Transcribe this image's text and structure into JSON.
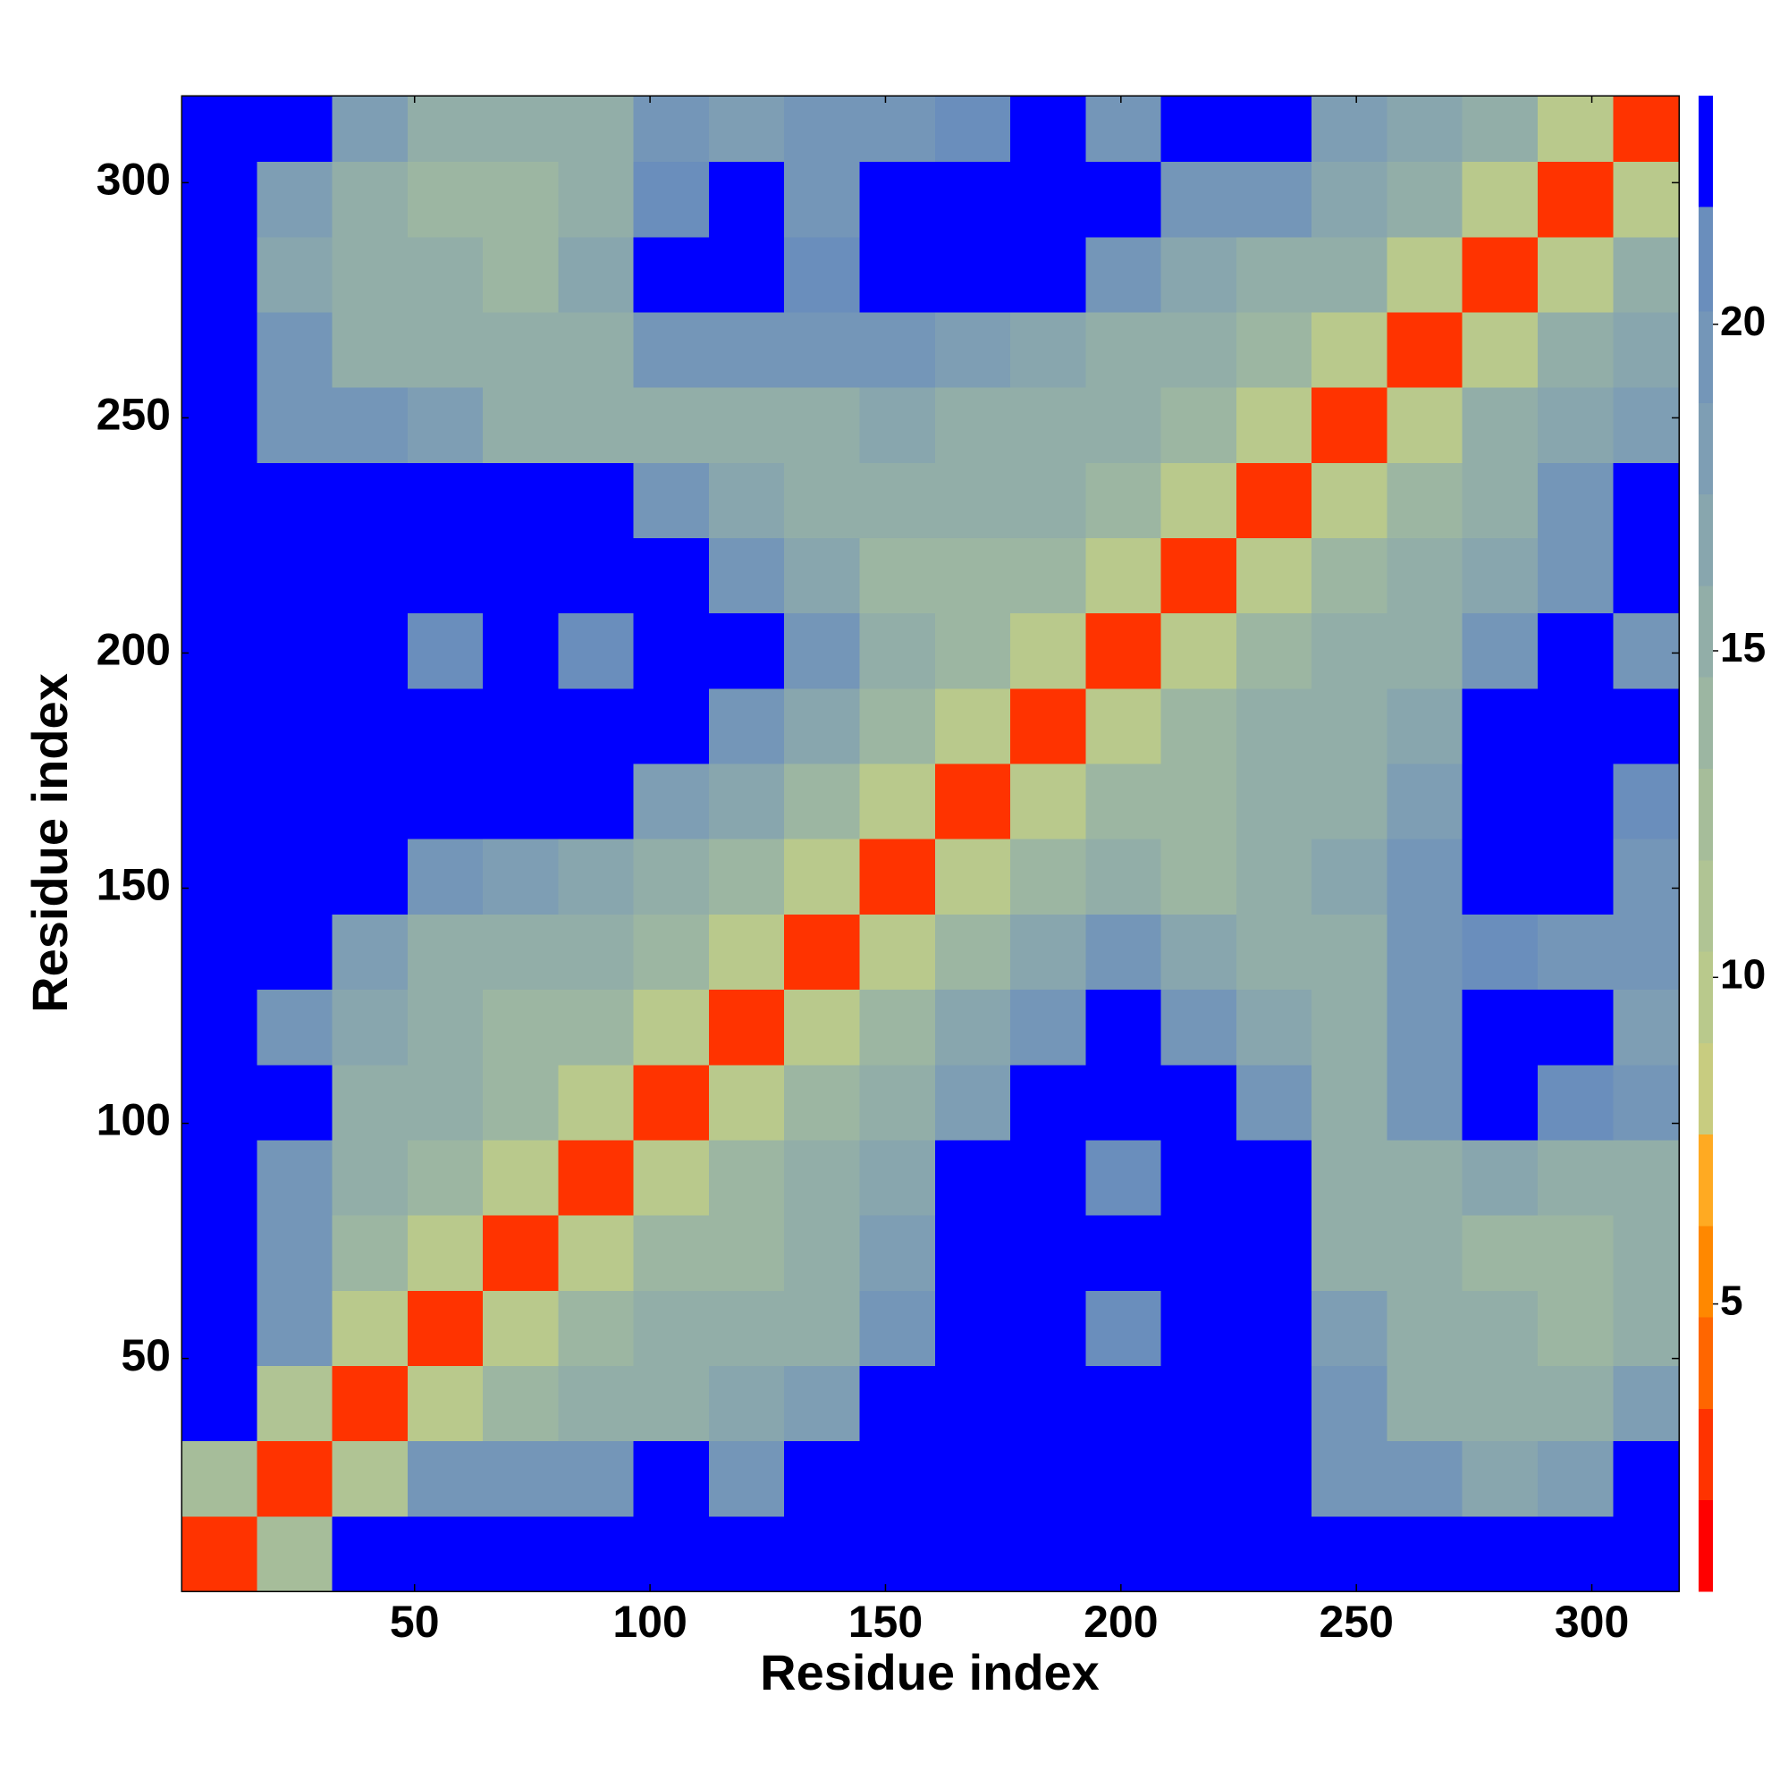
{
  "chart_data": {
    "type": "heatmap",
    "x_label": "Residue index",
    "y_label": "Residue index",
    "xlim": [
      0.5,
      318.5
    ],
    "ylim": [
      0.5,
      318.5
    ],
    "xticks": [
      50,
      100,
      150,
      200,
      250,
      300
    ],
    "yticks": [
      50,
      100,
      150,
      200,
      250,
      300
    ],
    "x_bins": [
      0.5,
      16.5,
      32.5,
      48.5,
      64.5,
      80.5,
      96.5,
      112.5,
      128.5,
      144.5,
      160.5,
      176.5,
      192.5,
      208.5,
      224.5,
      240.5,
      256.5,
      272.5,
      288.5,
      304.5,
      318.5
    ],
    "y_bins": [
      0.5,
      16.5,
      32.5,
      48.5,
      64.5,
      80.5,
      96.5,
      112.5,
      128.5,
      144.5,
      160.5,
      176.5,
      192.5,
      208.5,
      224.5,
      240.5,
      256.5,
      272.5,
      288.5,
      304.5,
      318.5
    ],
    "z": [
      [
        3,
        12,
        23,
        23,
        23,
        23,
        23,
        23,
        23,
        23,
        23,
        23,
        23,
        23,
        23,
        23,
        23,
        23,
        23,
        23
      ],
      [
        12,
        3,
        11,
        19,
        20,
        19,
        23,
        20,
        23,
        23,
        23,
        23,
        23,
        23,
        23,
        19,
        20,
        17,
        18,
        23
      ],
      [
        23,
        11,
        3,
        10,
        14,
        15,
        16,
        17,
        18,
        23,
        23,
        23,
        23,
        23,
        23,
        20,
        16,
        15,
        16,
        18
      ],
      [
        23,
        19,
        10,
        3,
        10,
        14,
        15,
        15,
        16,
        20,
        23,
        23,
        21,
        23,
        23,
        18,
        15,
        15,
        14,
        15
      ],
      [
        23,
        20,
        14,
        10,
        3,
        10,
        14,
        14,
        15,
        18,
        23,
        23,
        23,
        23,
        23,
        16,
        15,
        14,
        14,
        16
      ],
      [
        23,
        19,
        15,
        14,
        10,
        3,
        10,
        14,
        15,
        17,
        23,
        23,
        21,
        23,
        23,
        15,
        16,
        17,
        15,
        16
      ],
      [
        23,
        23,
        16,
        15,
        14,
        10,
        3,
        10,
        14,
        15,
        18,
        23,
        23,
        23,
        20,
        16,
        20,
        23,
        21,
        20
      ],
      [
        23,
        20,
        17,
        15,
        14,
        14,
        10,
        3,
        10,
        14,
        17,
        20,
        23,
        20,
        17,
        16,
        20,
        23,
        22,
        18
      ],
      [
        23,
        23,
        18,
        16,
        15,
        15,
        14,
        10,
        3,
        10,
        14,
        17,
        20,
        17,
        15,
        16,
        19,
        21,
        20,
        19
      ],
      [
        23,
        23,
        23,
        20,
        18,
        17,
        15,
        14,
        10,
        3,
        10,
        14,
        16,
        14,
        15,
        17,
        20,
        23,
        22,
        20
      ],
      [
        23,
        23,
        23,
        23,
        23,
        23,
        18,
        17,
        14,
        10,
        3,
        10,
        14,
        14,
        15,
        16,
        18,
        23,
        23,
        21
      ],
      [
        23,
        23,
        23,
        23,
        23,
        23,
        23,
        20,
        17,
        14,
        10,
        3,
        10,
        14,
        15,
        15,
        17,
        23,
        23,
        23
      ],
      [
        23,
        23,
        23,
        21,
        23,
        21,
        23,
        23,
        20,
        16,
        14,
        10,
        3,
        10,
        14,
        15,
        16,
        20,
        23,
        20
      ],
      [
        23,
        23,
        23,
        23,
        23,
        23,
        23,
        20,
        17,
        14,
        14,
        14,
        10,
        3,
        10,
        14,
        15,
        17,
        20,
        23
      ],
      [
        23,
        23,
        23,
        23,
        23,
        23,
        20,
        17,
        15,
        15,
        15,
        15,
        14,
        10,
        3,
        10,
        14,
        16,
        20,
        23
      ],
      [
        23,
        19,
        20,
        18,
        16,
        15,
        16,
        16,
        16,
        17,
        16,
        15,
        15,
        14,
        10,
        3,
        10,
        15,
        17,
        18
      ],
      [
        23,
        20,
        16,
        15,
        15,
        16,
        20,
        20,
        19,
        20,
        18,
        17,
        16,
        15,
        14,
        10,
        3,
        10,
        15,
        17
      ],
      [
        23,
        17,
        15,
        15,
        14,
        17,
        23,
        23,
        21,
        23,
        23,
        23,
        20,
        17,
        16,
        15,
        10,
        3,
        10,
        15
      ],
      [
        23,
        18,
        16,
        14,
        14,
        15,
        21,
        22,
        20,
        22,
        23,
        23,
        23,
        20,
        20,
        17,
        15,
        10,
        3,
        10
      ],
      [
        23,
        23,
        18,
        15,
        16,
        16,
        20,
        18,
        19,
        20,
        21,
        23,
        20,
        23,
        23,
        18,
        17,
        15,
        10,
        3
      ]
    ],
    "colorbar": {
      "levels": [
        0.6,
        2.0,
        3.4,
        4.8,
        6.2,
        7.6,
        9.0,
        10.4,
        11.8,
        13.2,
        14.6,
        16.0,
        17.4,
        18.8,
        20.2,
        21.8,
        23.5
      ],
      "colors": [
        "#ff0000",
        "#ff3300",
        "#ff6600",
        "#ff8800",
        "#ffaa22",
        "#c8cc80",
        "#b9c98c",
        "#b0c494",
        "#a6bd9a",
        "#9cb6a2",
        "#92aea8",
        "#88a6ae",
        "#7e9eb4",
        "#7496b8",
        "#6a8ebc",
        "#0000ff"
      ],
      "ticks": [
        5,
        10,
        15,
        20
      ]
    }
  }
}
